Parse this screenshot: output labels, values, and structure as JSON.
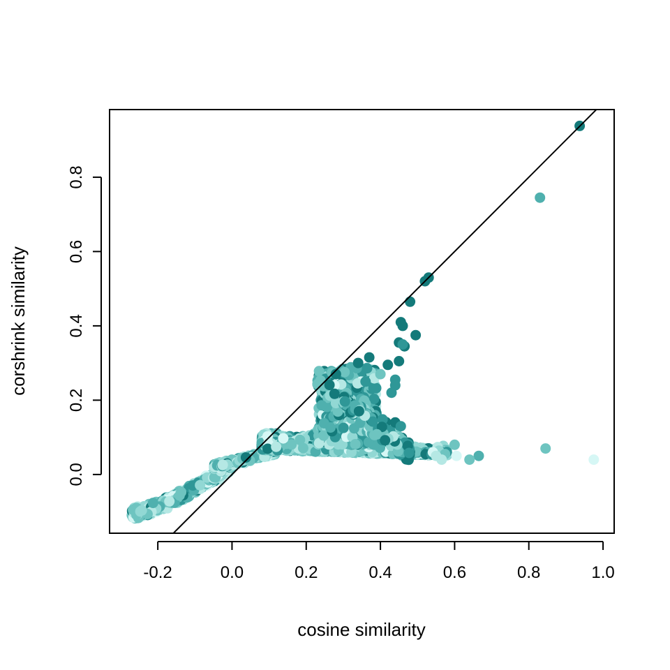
{
  "chart_data": {
    "type": "scatter",
    "title": "",
    "xlabel": "cosine similarity",
    "ylabel": "corshrink similarity",
    "xlim": [
      -0.33,
      1.03
    ],
    "ylim": [
      -0.158,
      0.982
    ],
    "xticks": [
      -0.2,
      0.0,
      0.2,
      0.4,
      0.6,
      0.8,
      1.0
    ],
    "xtick_labels": [
      "-0.2",
      "0.0",
      "0.2",
      "0.4",
      "0.6",
      "0.8",
      "1.0"
    ],
    "yticks": [
      0.0,
      0.2,
      0.4,
      0.6,
      0.8
    ],
    "ytick_labels": [
      "0.0",
      "0.2",
      "0.4",
      "0.6",
      "0.8"
    ],
    "grid": false,
    "legend": "none",
    "reference_line": {
      "slope": 1,
      "intercept": 0,
      "color": "#000000"
    },
    "colors": [
      "#147a7a",
      "#2f9797",
      "#4fb0ae",
      "#6ec4c0",
      "#92d8d4",
      "#b5e8e4",
      "#d6f7f5"
    ],
    "points": [
      {
        "x": 0.937,
        "y": 0.938,
        "c": 0
      },
      {
        "x": 0.83,
        "y": 0.745,
        "c": 2
      },
      {
        "x": 0.845,
        "y": 0.07,
        "c": 3
      },
      {
        "x": 0.975,
        "y": 0.04,
        "c": 6
      },
      {
        "x": 0.53,
        "y": 0.53,
        "c": 0
      },
      {
        "x": 0.52,
        "y": 0.52,
        "c": 0
      },
      {
        "x": 0.48,
        "y": 0.465,
        "c": 0
      },
      {
        "x": 0.455,
        "y": 0.41,
        "c": 0
      },
      {
        "x": 0.46,
        "y": 0.4,
        "c": 0
      },
      {
        "x": 0.495,
        "y": 0.375,
        "c": 0
      },
      {
        "x": 0.45,
        "y": 0.355,
        "c": 0
      },
      {
        "x": 0.465,
        "y": 0.345,
        "c": 0
      },
      {
        "x": 0.46,
        "y": 0.35,
        "c": 1
      },
      {
        "x": 0.45,
        "y": 0.305,
        "c": 0
      },
      {
        "x": 0.44,
        "y": 0.255,
        "c": 1
      },
      {
        "x": 0.44,
        "y": 0.24,
        "c": 1
      },
      {
        "x": 0.43,
        "y": 0.22,
        "c": 1
      },
      {
        "x": 0.42,
        "y": 0.295,
        "c": 0
      },
      {
        "x": 0.37,
        "y": 0.315,
        "c": 0
      },
      {
        "x": 0.4,
        "y": 0.27,
        "c": 3
      },
      {
        "x": 0.36,
        "y": 0.25,
        "c": 1
      },
      {
        "x": 0.28,
        "y": 0.27,
        "c": 0
      },
      {
        "x": 0.34,
        "y": 0.3,
        "c": 0
      },
      {
        "x": 0.6,
        "y": 0.08,
        "c": 3
      },
      {
        "x": 0.665,
        "y": 0.05,
        "c": 2
      },
      {
        "x": 0.64,
        "y": 0.04,
        "c": 3
      },
      {
        "x": 0.605,
        "y": 0.05,
        "c": 6
      },
      {
        "x": 0.565,
        "y": 0.04,
        "c": 5
      },
      {
        "x": 0.55,
        "y": 0.05,
        "c": 5
      },
      {
        "x": 0.44,
        "y": 0.14,
        "c": 0
      },
      {
        "x": 0.455,
        "y": 0.13,
        "c": 1
      }
    ]
  }
}
